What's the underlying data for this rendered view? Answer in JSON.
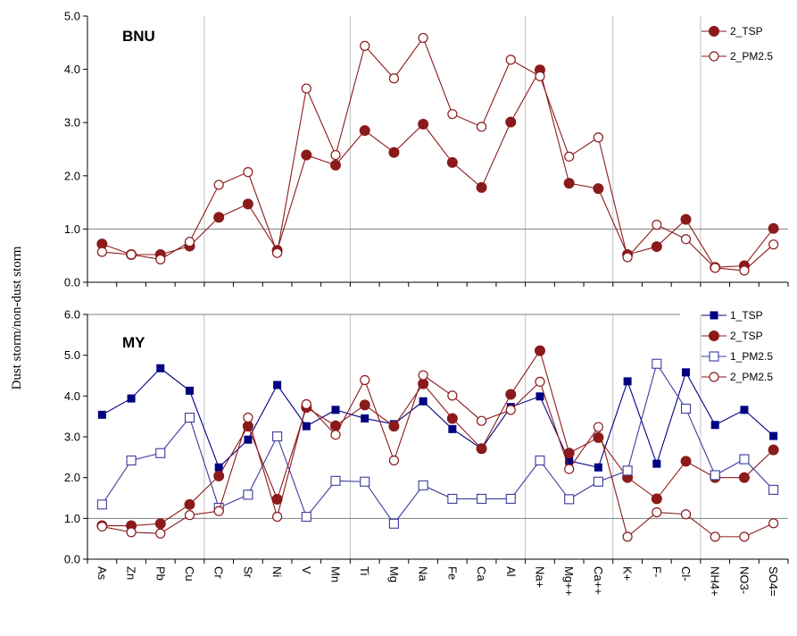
{
  "chart_data": {
    "type": "line",
    "ylabel": "Dust storm/non-dust storm",
    "categories": [
      "As",
      "Zn",
      "Pb",
      "Cu",
      "Cr",
      "Sr",
      "Ni",
      "V",
      "Mn",
      "Ti",
      "Mg",
      "Na",
      "Fe",
      "Ca",
      "Al",
      "Na+",
      "Mg++",
      "Ca++",
      "K+",
      "F-",
      "Cl-",
      "NH4+",
      "NO3-",
      "SO4="
    ],
    "panels": [
      {
        "title": "BNU",
        "ylim": [
          0,
          5
        ],
        "yticks": [
          "0.0",
          "1.0",
          "2.0",
          "3.0",
          "4.0",
          "5.0"
        ],
        "reference_line": 1.0,
        "series": [
          {
            "name": "2_TSP",
            "marker": "filled-circle",
            "color": "#8b1a1a",
            "values": [
              0.72,
              0.52,
              0.52,
              0.68,
              1.22,
              1.47,
              0.6,
              2.39,
              2.2,
              2.85,
              2.44,
              2.97,
              2.25,
              1.78,
              3.01,
              3.99,
              1.86,
              1.76,
              0.52,
              0.67,
              1.18,
              0.28,
              0.31,
              1.01
            ]
          },
          {
            "name": "2_PM2.5",
            "marker": "open-circle",
            "color": "#8b1a1a",
            "values": [
              0.57,
              0.52,
              0.43,
              0.76,
              1.83,
              2.07,
              0.55,
              3.64,
              2.39,
              4.44,
              3.83,
              4.59,
              3.16,
              2.92,
              4.18,
              3.87,
              2.36,
              2.72,
              0.47,
              1.08,
              0.81,
              0.27,
              0.22,
              0.71
            ]
          }
        ]
      },
      {
        "title": "MY",
        "ylim": [
          0,
          6
        ],
        "yticks": [
          "0.0",
          "1.0",
          "2.0",
          "3.0",
          "4.0",
          "5.0",
          "6.0"
        ],
        "reference_line": 1.0,
        "series": [
          {
            "name": "1_TSP",
            "marker": "filled-square",
            "color": "#000080",
            "values": [
              3.54,
              3.94,
              4.68,
              4.13,
              2.25,
              2.93,
              4.27,
              3.26,
              3.66,
              3.45,
              3.31,
              3.87,
              3.19,
              2.71,
              3.73,
              3.99,
              2.41,
              2.25,
              4.36,
              2.34,
              4.58,
              3.29,
              3.66,
              3.02
            ]
          },
          {
            "name": "2_TSP",
            "marker": "filled-circle",
            "color": "#8b1a1a",
            "values": [
              0.82,
              0.82,
              0.87,
              1.34,
              2.04,
              3.26,
              1.47,
              3.72,
              3.27,
              3.78,
              3.26,
              4.3,
              3.45,
              2.71,
              4.04,
              5.11,
              2.6,
              2.98,
              2.0,
              1.48,
              2.4,
              2.0,
              2.0,
              2.68
            ]
          },
          {
            "name": "1_PM2.5",
            "marker": "open-square",
            "color": "#3b3b9c",
            "values": [
              1.34,
              2.42,
              2.6,
              3.47,
              1.26,
              1.58,
              3.01,
              1.04,
              1.92,
              1.9,
              0.87,
              1.81,
              1.48,
              1.48,
              1.48,
              2.42,
              1.47,
              1.9,
              2.17,
              4.79,
              3.69,
              2.06,
              2.45,
              1.7
            ]
          },
          {
            "name": "2_PM2.5",
            "marker": "open-circle",
            "color": "#8b1a1a",
            "values": [
              0.8,
              0.66,
              0.63,
              1.08,
              1.18,
              3.47,
              1.04,
              3.8,
              3.05,
              4.39,
              2.42,
              4.51,
              4.01,
              3.39,
              3.66,
              4.35,
              2.21,
              3.24,
              0.55,
              1.15,
              1.1,
              0.55,
              0.55,
              0.88
            ]
          }
        ]
      }
    ]
  }
}
